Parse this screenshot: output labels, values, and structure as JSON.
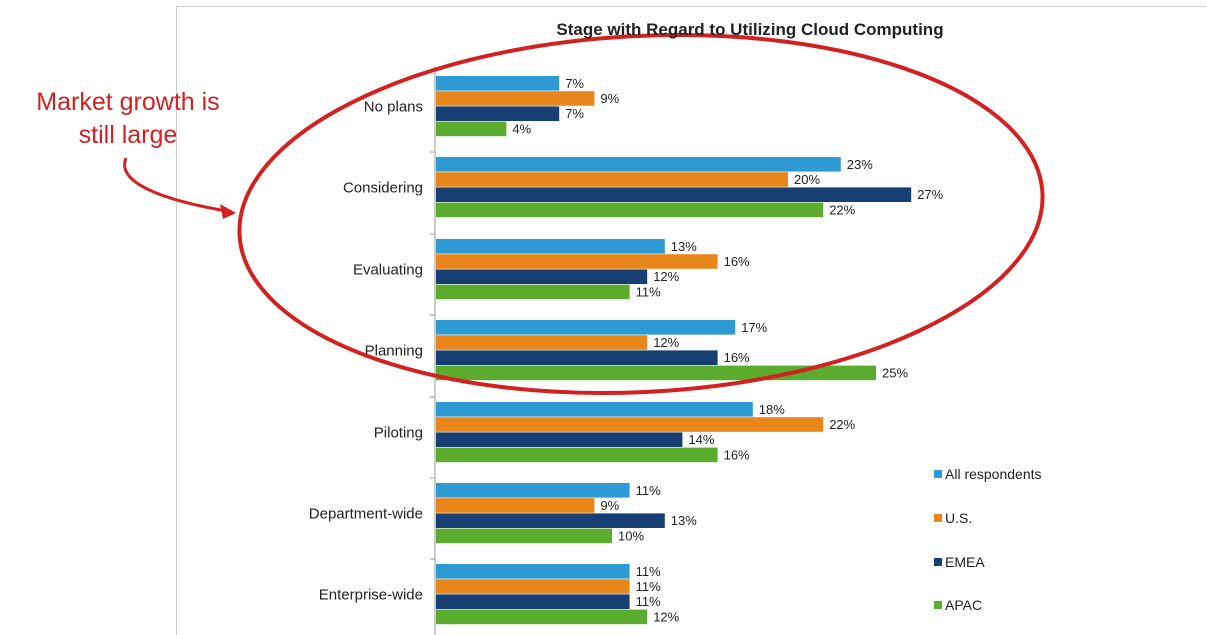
{
  "annotation": {
    "lines": [
      "Market growth is",
      "still large"
    ]
  },
  "chart_data": {
    "type": "bar",
    "orientation": "horizontal",
    "title": "Stage with Regard to Utilizing Cloud Computing",
    "categories": [
      "No plans",
      "Considering",
      "Evaluating",
      "Planning",
      "Piloting",
      "Department-wide",
      "Enterprise-wide"
    ],
    "series": [
      {
        "name": "All respondents",
        "color": "#2e9ad3",
        "values": [
          7,
          23,
          13,
          17,
          18,
          11,
          11
        ],
        "labels": [
          "7%",
          "23%",
          "13%",
          "17%",
          "18%",
          "11%",
          "11%"
        ]
      },
      {
        "name": "U.S.",
        "color": "#e8861c",
        "values": [
          9,
          20,
          16,
          12,
          22,
          9,
          11
        ],
        "labels": [
          "9%",
          "20%",
          "16%",
          "12%",
          "22%",
          "9%",
          "11%"
        ]
      },
      {
        "name": "EMEA",
        "color": "#173f73",
        "values": [
          7,
          27,
          12,
          16,
          14,
          13,
          11
        ],
        "labels": [
          "7%",
          "27%",
          "12%",
          "16%",
          "14%",
          "13%",
          "11%"
        ]
      },
      {
        "name": "APAC",
        "color": "#5bac2e",
        "values": [
          4,
          22,
          11,
          25,
          16,
          10,
          12
        ],
        "labels": [
          "4%",
          "22%",
          "11%",
          "25%",
          "16%",
          "10%",
          "12%"
        ]
      }
    ],
    "legend_position": "bottom-right",
    "grid": false,
    "highlight_color": "#d32020"
  }
}
